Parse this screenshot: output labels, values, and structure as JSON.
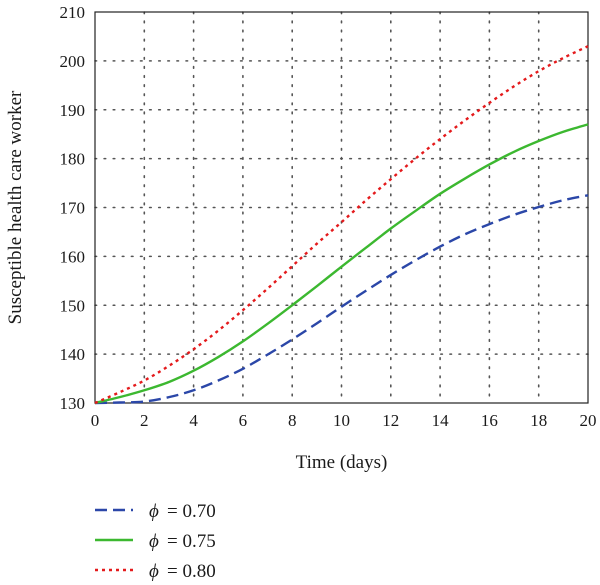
{
  "chart_data": {
    "type": "line",
    "title": "",
    "xlabel": "Time (days)",
    "ylabel": "Susceptible health care worker",
    "xlim": [
      0,
      20
    ],
    "ylim": [
      130,
      210
    ],
    "x_ticks": [
      "0",
      "2",
      "4",
      "6",
      "8",
      "10",
      "12",
      "14",
      "16",
      "18",
      "20"
    ],
    "y_ticks": [
      "130",
      "140",
      "150",
      "160",
      "170",
      "180",
      "190",
      "200",
      "210"
    ],
    "grid": true,
    "legend_position": "below",
    "series": [
      {
        "name": "ϕ = 0.70",
        "legend_symbol": "ϕ",
        "legend_value": "= 0.70",
        "color": "#2b47a8",
        "style": "dashed",
        "x": [
          0,
          1,
          2,
          3,
          4,
          5,
          6,
          7,
          8,
          9,
          10,
          11,
          12,
          13,
          14,
          15,
          16,
          17,
          18,
          19,
          20
        ],
        "y": [
          130,
          130.1,
          130.3,
          131.2,
          132.6,
          134.6,
          137,
          139.9,
          143,
          146.3,
          149.7,
          153,
          156.2,
          159.2,
          162,
          164.5,
          166.6,
          168.5,
          170.1,
          171.5,
          172.5
        ]
      },
      {
        "name": "ϕ = 0.75",
        "legend_symbol": "ϕ",
        "legend_value": "= 0.75",
        "color": "#3cb830",
        "style": "solid",
        "x": [
          0,
          1,
          2,
          3,
          4,
          5,
          6,
          7,
          8,
          9,
          10,
          11,
          12,
          13,
          14,
          15,
          16,
          17,
          18,
          19,
          20
        ],
        "y": [
          130,
          131.2,
          132.6,
          134.3,
          136.6,
          139.4,
          142.6,
          146.2,
          150,
          153.9,
          157.9,
          161.8,
          165.7,
          169.3,
          172.8,
          175.9,
          178.8,
          181.4,
          183.6,
          185.5,
          187
        ]
      },
      {
        "name": "ϕ = 0.80",
        "legend_symbol": "ϕ",
        "legend_value": "= 0.80",
        "color": "#e41a1c",
        "style": "dotted",
        "x": [
          0,
          1,
          2,
          3,
          4,
          5,
          6,
          7,
          8,
          9,
          10,
          11,
          12,
          13,
          14,
          15,
          16,
          17,
          18,
          19,
          20
        ],
        "y": [
          130,
          132.2,
          134.6,
          137.6,
          141,
          144.8,
          149,
          153.4,
          158,
          162.6,
          167,
          171.5,
          175.8,
          180,
          184,
          187.8,
          191.4,
          194.8,
          197.9,
          200.6,
          203
        ]
      }
    ]
  }
}
